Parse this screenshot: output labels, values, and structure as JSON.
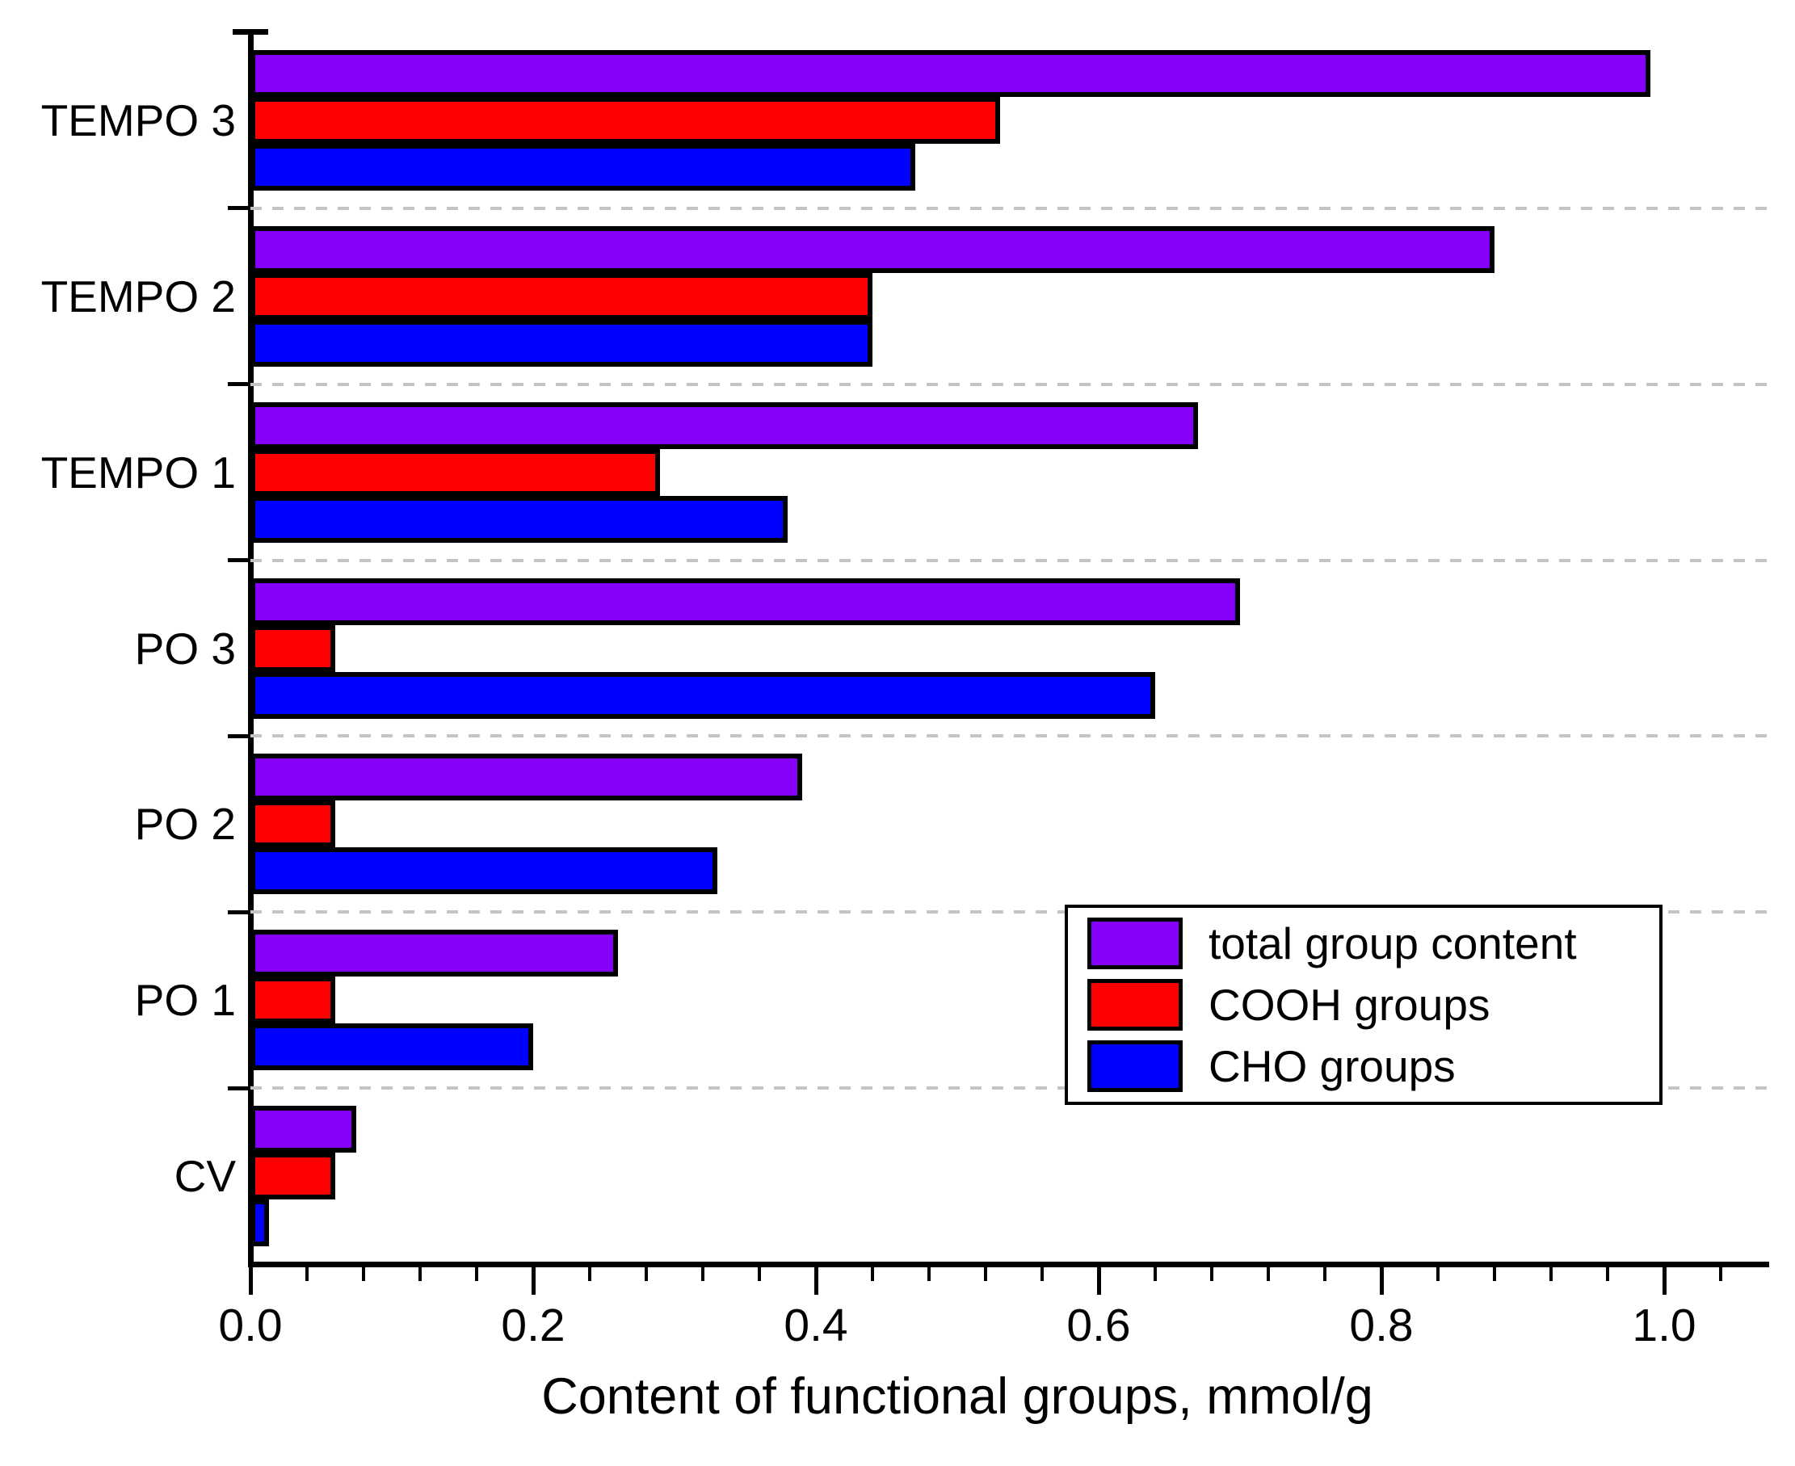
{
  "chart_data": {
    "type": "bar",
    "orientation": "horizontal",
    "title": "",
    "xlabel": "Content of functional groups, mmol/g",
    "ylabel": "",
    "categories": [
      "TEMPO 3",
      "TEMPO 2",
      "TEMPO 1",
      "PO 3",
      "PO 2",
      "PO 1",
      "CV"
    ],
    "series": [
      {
        "name": "total group content",
        "color": "#8500FA",
        "values": [
          0.99,
          0.88,
          0.67,
          0.7,
          0.39,
          0.26,
          0.075
        ]
      },
      {
        "name": "COOH groups",
        "color": "#FF0000",
        "values": [
          0.53,
          0.44,
          0.29,
          0.06,
          0.06,
          0.06,
          0.06
        ]
      },
      {
        "name": "CHO groups",
        "color": "#0000FF",
        "values": [
          0.47,
          0.44,
          0.38,
          0.64,
          0.33,
          0.2,
          0.013
        ]
      }
    ],
    "xlim": [
      0,
      1.074
    ],
    "x_major_ticks": [
      0.0,
      0.2,
      0.4,
      0.6,
      0.8,
      1.0
    ],
    "x_tick_labels": [
      "0.0",
      "0.2",
      "0.4",
      "0.6",
      "0.8",
      "1.0"
    ],
    "x_minor_step": 0.04,
    "grid": "horizontal-dashed-between-groups",
    "gridline_color": "#C4C4C4",
    "bar_border_color": "#000000",
    "legend_position": "lower-right"
  }
}
